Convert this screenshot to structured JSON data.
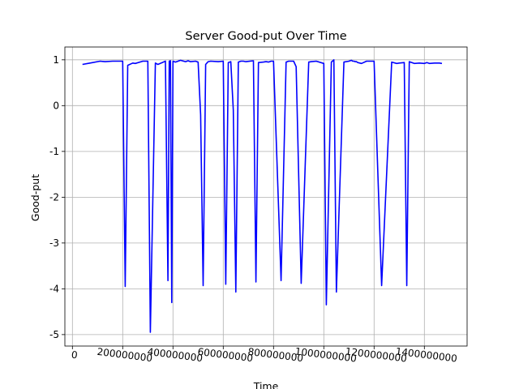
{
  "chart_data": {
    "type": "line",
    "title": "Server Good-put Over Time",
    "xlabel": "Time",
    "ylabel": "Good-put",
    "xlim": [
      -30000000,
      1570000000
    ],
    "ylim": [
      -5.25,
      1.28
    ],
    "grid": true,
    "line_color": "#0000ff",
    "x_ticks": [
      {
        "value": 0,
        "label": "0"
      },
      {
        "value": 200000000,
        "label": "200000000"
      },
      {
        "value": 400000000,
        "label": "400000000"
      },
      {
        "value": 600000000,
        "label": "600000000"
      },
      {
        "value": 800000000,
        "label": "800000000"
      },
      {
        "value": 1000000000,
        "label": "1000000000"
      },
      {
        "value": 1200000000,
        "label": "1200000000"
      },
      {
        "value": 1400000000,
        "label": "1400000000"
      }
    ],
    "y_ticks": [
      {
        "value": 1,
        "label": "1"
      },
      {
        "value": 0,
        "label": "0"
      },
      {
        "value": -1,
        "label": "-1"
      },
      {
        "value": -2,
        "label": "-2"
      },
      {
        "value": -3,
        "label": "-3"
      },
      {
        "value": -4,
        "label": "-4"
      },
      {
        "value": -5,
        "label": "-5"
      }
    ],
    "series": [
      {
        "name": "",
        "x": [
          40000000,
          70000000,
          110000000,
          130000000,
          160000000,
          200000000,
          210000000,
          220000000,
          240000000,
          250000000,
          280000000,
          300000000,
          310000000,
          330000000,
          340000000,
          370000000,
          380000000,
          385000000,
          390000000,
          395000000,
          400000000,
          410000000,
          430000000,
          450000000,
          460000000,
          470000000,
          490000000,
          500000000,
          510000000,
          520000000,
          530000000,
          540000000,
          550000000,
          580000000,
          600000000,
          610000000,
          620000000,
          630000000,
          640000000,
          650000000,
          660000000,
          670000000,
          680000000,
          690000000,
          720000000,
          730000000,
          740000000,
          760000000,
          770000000,
          780000000,
          790000000,
          800000000,
          830000000,
          850000000,
          860000000,
          880000000,
          890000000,
          910000000,
          940000000,
          950000000,
          970000000,
          1000000000,
          1010000000,
          1030000000,
          1040000000,
          1050000000,
          1080000000,
          1100000000,
          1110000000,
          1115000000,
          1120000000,
          1125000000,
          1130000000,
          1135000000,
          1150000000,
          1170000000,
          1200000000,
          1230000000,
          1270000000,
          1290000000,
          1300000000,
          1320000000,
          1330000000,
          1340000000,
          1360000000,
          1380000000,
          1400000000,
          1410000000,
          1420000000,
          1440000000,
          1460000000,
          1470000000
        ],
        "y": [
          0.9,
          0.93,
          0.97,
          0.96,
          0.97,
          0.97,
          -3.95,
          0.88,
          0.93,
          0.92,
          0.97,
          0.97,
          -4.95,
          0.93,
          0.9,
          0.97,
          -3.82,
          0.97,
          0.98,
          -4.3,
          0.97,
          0.95,
          0.99,
          0.96,
          0.98,
          0.96,
          0.97,
          0.95,
          -0.2,
          -3.93,
          0.9,
          0.96,
          0.97,
          0.96,
          0.97,
          -3.9,
          0.94,
          0.96,
          -0.1,
          -4.07,
          0.95,
          0.97,
          0.97,
          0.96,
          0.98,
          -3.85,
          0.94,
          0.95,
          0.96,
          0.95,
          0.97,
          0.97,
          -3.82,
          0.95,
          0.97,
          0.97,
          0.85,
          -3.88,
          0.95,
          0.96,
          0.97,
          0.92,
          -4.35,
          0.95,
          1.0,
          -4.07,
          0.95,
          0.97,
          0.99,
          0.97,
          0.97,
          0.96,
          0.96,
          0.94,
          0.92,
          0.97,
          0.97,
          -3.93,
          0.95,
          0.92,
          0.93,
          0.94,
          -3.93,
          0.96,
          0.92,
          0.93,
          0.92,
          0.94,
          0.92,
          0.93,
          0.93,
          0.92
        ]
      }
    ]
  }
}
